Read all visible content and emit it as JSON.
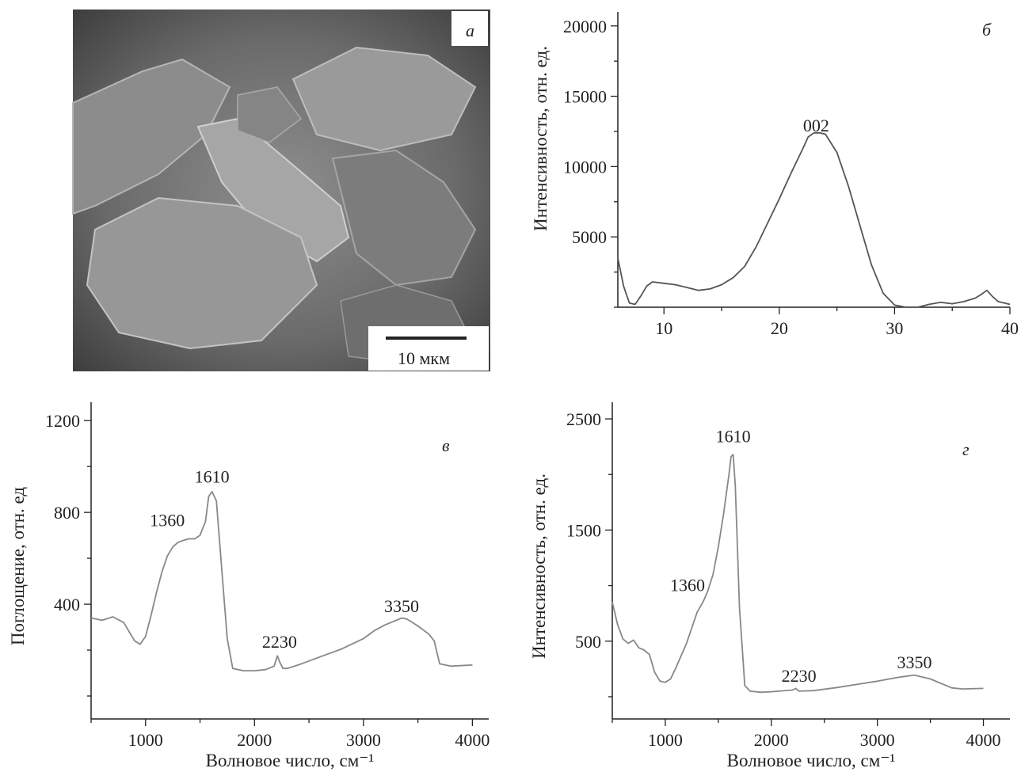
{
  "sem": {
    "letter": "а",
    "scale_label": "10 мкм"
  },
  "chart_data": [
    {
      "id": "b",
      "type": "line",
      "letter": "б",
      "xlabel": "",
      "ylabel": "Интенсивность, отн. ед.",
      "xlim": [
        6,
        40
      ],
      "ylim": [
        0,
        21000
      ],
      "xticks": [
        10,
        20,
        30,
        40
      ],
      "yticks": [
        5000,
        10000,
        15000,
        20000
      ],
      "color": "#555555",
      "x": [
        6,
        6.5,
        7,
        7.5,
        8,
        8.5,
        9,
        10,
        11,
        12,
        13,
        14,
        15,
        16,
        17,
        18,
        19,
        20,
        21,
        22,
        22.5,
        23,
        23.5,
        24,
        25,
        26,
        27,
        28,
        29,
        30,
        31,
        32,
        33,
        34,
        35,
        36,
        37,
        37.5,
        38,
        38.5,
        39,
        40
      ],
      "y": [
        3500,
        1500,
        300,
        200,
        800,
        1500,
        1800,
        1700,
        1600,
        1400,
        1200,
        1300,
        1600,
        2100,
        2900,
        4300,
        6000,
        7700,
        9500,
        11200,
        12100,
        12400,
        12400,
        12300,
        11000,
        8600,
        5800,
        3000,
        1000,
        150,
        -100,
        0,
        200,
        350,
        250,
        400,
        650,
        900,
        1200,
        750,
        400,
        200
      ],
      "peak_labels": [
        {
          "text": "002",
          "x": 23.2,
          "y": 12500
        }
      ]
    },
    {
      "id": "v",
      "type": "line",
      "letter": "в",
      "xlabel": "Волновое число, см⁻¹",
      "ylabel": "Поглощение, отн. ед",
      "xlim": [
        500,
        4150
      ],
      "ylim": [
        -100,
        1280
      ],
      "xticks": [
        1000,
        2000,
        3000,
        4000
      ],
      "yticks": [
        400,
        800,
        1200
      ],
      "color": "#888888",
      "x": [
        500,
        600,
        700,
        800,
        850,
        900,
        950,
        1000,
        1050,
        1100,
        1150,
        1200,
        1250,
        1300,
        1360,
        1400,
        1450,
        1500,
        1550,
        1580,
        1610,
        1650,
        1700,
        1750,
        1800,
        1900,
        2000,
        2100,
        2180,
        2210,
        2230,
        2260,
        2300,
        2400,
        2600,
        2800,
        3000,
        3100,
        3200,
        3300,
        3350,
        3400,
        3500,
        3600,
        3650,
        3700,
        3800,
        4000
      ],
      "y": [
        340,
        330,
        345,
        320,
        280,
        240,
        225,
        260,
        350,
        450,
        540,
        610,
        650,
        670,
        680,
        685,
        685,
        700,
        760,
        870,
        890,
        850,
        550,
        250,
        120,
        110,
        110,
        115,
        130,
        175,
        150,
        120,
        120,
        135,
        170,
        205,
        250,
        285,
        310,
        330,
        340,
        335,
        305,
        270,
        240,
        140,
        130,
        135
      ],
      "peak_labels": [
        {
          "text": "1360",
          "x": 1200,
          "y": 740
        },
        {
          "text": "1610",
          "x": 1610,
          "y": 930
        },
        {
          "text": "2230",
          "x": 2230,
          "y": 210
        },
        {
          "text": "3350",
          "x": 3350,
          "y": 365
        }
      ]
    },
    {
      "id": "g",
      "type": "line",
      "letter": "г",
      "xlabel": "Волновое число, см⁻¹",
      "ylabel": "Интенсивность, отн. ед.",
      "xlim": [
        500,
        4250
      ],
      "ylim": [
        -200,
        2650
      ],
      "xticks": [
        1000,
        2000,
        3000,
        4000
      ],
      "yticks": [
        500,
        1500,
        2500
      ],
      "color": "#888888",
      "x": [
        500,
        550,
        600,
        650,
        700,
        750,
        800,
        850,
        900,
        950,
        1000,
        1050,
        1100,
        1200,
        1300,
        1360,
        1400,
        1450,
        1500,
        1550,
        1600,
        1620,
        1640,
        1660,
        1700,
        1750,
        1800,
        1900,
        2000,
        2200,
        2230,
        2260,
        2400,
        2600,
        2800,
        3000,
        3200,
        3350,
        3500,
        3700,
        3800,
        4000
      ],
      "y": [
        850,
        650,
        520,
        480,
        510,
        440,
        420,
        380,
        220,
        140,
        130,
        160,
        260,
        480,
        760,
        860,
        950,
        1100,
        1350,
        1650,
        2000,
        2160,
        2180,
        1900,
        800,
        100,
        50,
        40,
        45,
        60,
        75,
        50,
        55,
        80,
        110,
        140,
        175,
        195,
        160,
        80,
        70,
        75
      ],
      "peak_labels": [
        {
          "text": "1610",
          "x": 1640,
          "y": 2290
        },
        {
          "text": "1360",
          "x": 1210,
          "y": 950
        },
        {
          "text": "2230",
          "x": 2260,
          "y": 135
        },
        {
          "text": "3350",
          "x": 3350,
          "y": 255
        }
      ]
    }
  ]
}
